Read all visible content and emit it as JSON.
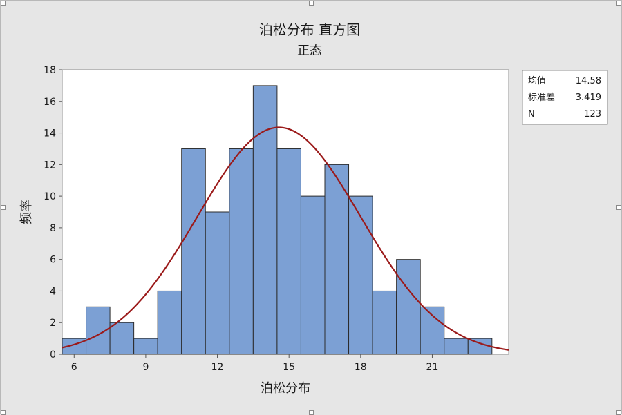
{
  "chart_data": {
    "type": "bar",
    "title": "泊松分布 直方图",
    "subtitle": "正态",
    "xlabel": "泊松分布",
    "ylabel": "频率",
    "x_ticks": [
      6,
      9,
      12,
      15,
      18,
      21
    ],
    "y_ticks": [
      0,
      2,
      4,
      6,
      8,
      10,
      12,
      14,
      16,
      18
    ],
    "xlim": [
      5.5,
      24.2
    ],
    "ylim": [
      0,
      18
    ],
    "bin_width": 1,
    "bins": [
      {
        "center": 6,
        "count": 1
      },
      {
        "center": 7,
        "count": 3
      },
      {
        "center": 8,
        "count": 2
      },
      {
        "center": 9,
        "count": 1
      },
      {
        "center": 10,
        "count": 4
      },
      {
        "center": 11,
        "count": 13
      },
      {
        "center": 12,
        "count": 9
      },
      {
        "center": 13,
        "count": 13
      },
      {
        "center": 14,
        "count": 17
      },
      {
        "center": 15,
        "count": 13
      },
      {
        "center": 16,
        "count": 10
      },
      {
        "center": 17,
        "count": 12
      },
      {
        "center": 18,
        "count": 10
      },
      {
        "center": 19,
        "count": 4
      },
      {
        "center": 20,
        "count": 6
      },
      {
        "center": 21,
        "count": 3
      },
      {
        "center": 22,
        "count": 1
      },
      {
        "center": 23,
        "count": 1
      }
    ],
    "fit": {
      "distribution": "normal",
      "mean": 14.58,
      "stdev": 3.419,
      "n": 123
    },
    "stats": [
      {
        "label": "均值",
        "value": "14.58"
      },
      {
        "label": "标准差",
        "value": "3.419"
      },
      {
        "label": "N",
        "value": "123"
      }
    ],
    "legend_placement": "top-right",
    "grid": false,
    "colors": {
      "bar_fill": "#7ca0d4",
      "bar_edge": "#2b2b2b",
      "curve": "#9b1a1a",
      "background": "#e6e6e6",
      "plot_bg": "#ffffff"
    }
  }
}
